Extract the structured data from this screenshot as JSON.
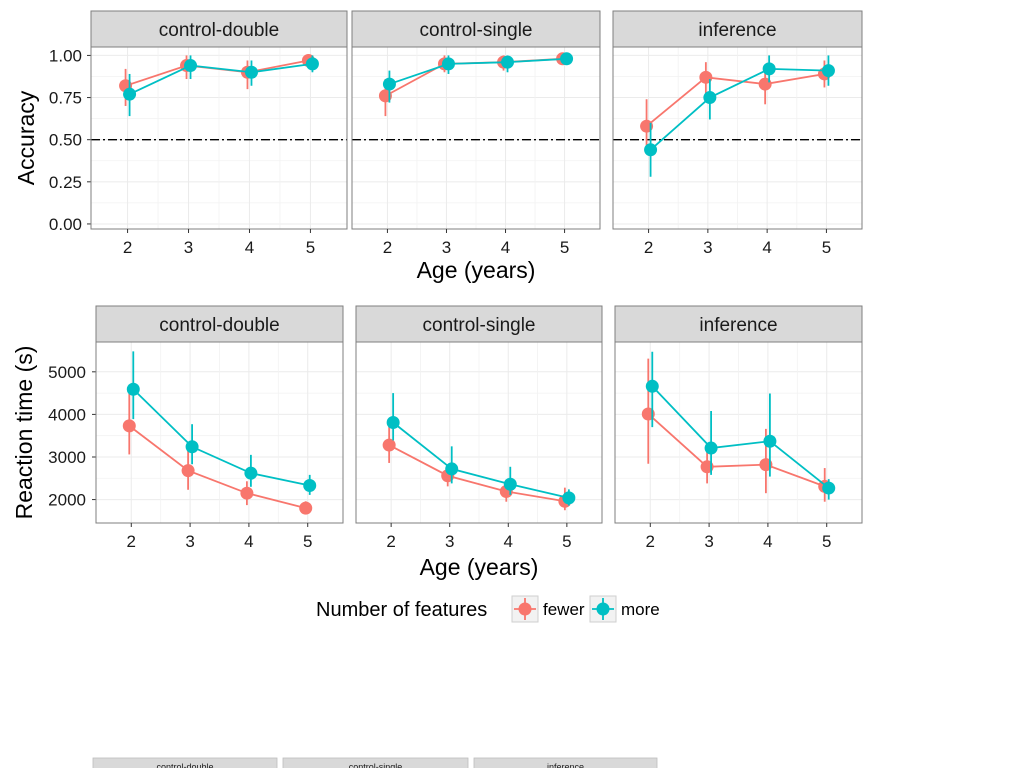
{
  "colors": {
    "fewer": "#F8766D",
    "more": "#00BFC4",
    "strip_bg": "#D9D9D9",
    "grid": "#EBEBEB",
    "panel_border": "#7F7F7F",
    "reference_line": "#000000"
  },
  "legend": {
    "title": "Number of features",
    "items": [
      "fewer",
      "more"
    ],
    "placement": "bottom"
  },
  "bottom_partial_strips": [
    "control-double",
    "control-single",
    "inference"
  ],
  "chart_data": [
    {
      "type": "line",
      "facets": [
        "control-double",
        "control-single",
        "inference"
      ],
      "xlabel": "Age (years)",
      "ylabel": "Accuracy",
      "x": [
        2,
        3,
        4,
        5
      ],
      "ylim": [
        -0.03,
        1.05
      ],
      "yticks": [
        0.0,
        0.25,
        0.5,
        0.75,
        1.0
      ],
      "ytick_labels": [
        "0.00",
        "0.25",
        "0.50",
        "0.75",
        "1.00"
      ],
      "reference_line": 0.5,
      "grid": true,
      "panels": [
        {
          "facet": "control-double",
          "series": [
            {
              "name": "fewer",
              "values": [
                0.82,
                0.94,
                0.9,
                0.97
              ],
              "lower": [
                0.7,
                0.86,
                0.8,
                0.94
              ],
              "upper": [
                0.92,
                1.0,
                0.97,
                1.0
              ]
            },
            {
              "name": "more",
              "values": [
                0.77,
                0.94,
                0.9,
                0.95
              ],
              "lower": [
                0.64,
                0.86,
                0.82,
                0.9
              ],
              "upper": [
                0.89,
                1.0,
                0.97,
                1.0
              ]
            }
          ]
        },
        {
          "facet": "control-single",
          "series": [
            {
              "name": "fewer",
              "values": [
                0.76,
                0.95,
                0.96,
                0.98
              ],
              "lower": [
                0.64,
                0.9,
                0.91,
                0.95
              ],
              "upper": [
                0.86,
                1.0,
                1.0,
                1.0
              ]
            },
            {
              "name": "more",
              "values": [
                0.83,
                0.95,
                0.96,
                0.98
              ],
              "lower": [
                0.72,
                0.89,
                0.9,
                0.95
              ],
              "upper": [
                0.91,
                1.0,
                1.0,
                1.0
              ]
            }
          ]
        },
        {
          "facet": "inference",
          "series": [
            {
              "name": "fewer",
              "values": [
                0.58,
                0.87,
                0.83,
                0.89
              ],
              "lower": [
                0.43,
                0.76,
                0.71,
                0.81
              ],
              "upper": [
                0.74,
                0.96,
                0.93,
                0.97
              ]
            },
            {
              "name": "more",
              "values": [
                0.44,
                0.75,
                0.92,
                0.91
              ],
              "lower": [
                0.28,
                0.62,
                0.84,
                0.82
              ],
              "upper": [
                0.6,
                0.86,
                1.0,
                1.0
              ]
            }
          ]
        }
      ]
    },
    {
      "type": "line",
      "facets": [
        "control-double",
        "control-single",
        "inference"
      ],
      "xlabel": "Age (years)",
      "ylabel": "Reaction time (s)",
      "x": [
        2,
        3,
        4,
        5
      ],
      "ylim": [
        1450,
        5700
      ],
      "yticks": [
        2000,
        3000,
        4000,
        5000
      ],
      "ytick_labels": [
        "2000",
        "3000",
        "4000",
        "5000"
      ],
      "grid": true,
      "panels": [
        {
          "facet": "control-double",
          "series": [
            {
              "name": "fewer",
              "values": [
                3730,
                2680,
                2150,
                1800
              ],
              "lower": [
                3060,
                2230,
                1870,
                1670
              ],
              "upper": [
                4560,
                3180,
                2430,
                1960
              ]
            },
            {
              "name": "more",
              "values": [
                4590,
                3240,
                2620,
                2330
              ],
              "lower": [
                3890,
                2830,
                2300,
                2110
              ],
              "upper": [
                5480,
                3770,
                3050,
                2580
              ]
            }
          ]
        },
        {
          "facet": "control-single",
          "series": [
            {
              "name": "fewer",
              "values": [
                3280,
                2560,
                2190,
                1960
              ],
              "lower": [
                2860,
                2310,
                1950,
                1750
              ],
              "upper": [
                3880,
                2800,
                2460,
                2280
              ]
            },
            {
              "name": "more",
              "values": [
                3810,
                2720,
                2360,
                2040
              ],
              "lower": [
                3390,
                2380,
                2110,
                1860
              ],
              "upper": [
                4500,
                3250,
                2770,
                2240
              ]
            }
          ]
        },
        {
          "facet": "inference",
          "series": [
            {
              "name": "fewer",
              "values": [
                4010,
                2770,
                2820,
                2310
              ],
              "lower": [
                2840,
                2380,
                2150,
                1950
              ],
              "upper": [
                5310,
                3190,
                3660,
                2740
              ]
            },
            {
              "name": "more",
              "values": [
                4660,
                3210,
                3370,
                2270
              ],
              "lower": [
                3700,
                2580,
                2540,
                2000
              ],
              "upper": [
                5470,
                4080,
                4490,
                2480
              ]
            }
          ]
        }
      ]
    }
  ]
}
